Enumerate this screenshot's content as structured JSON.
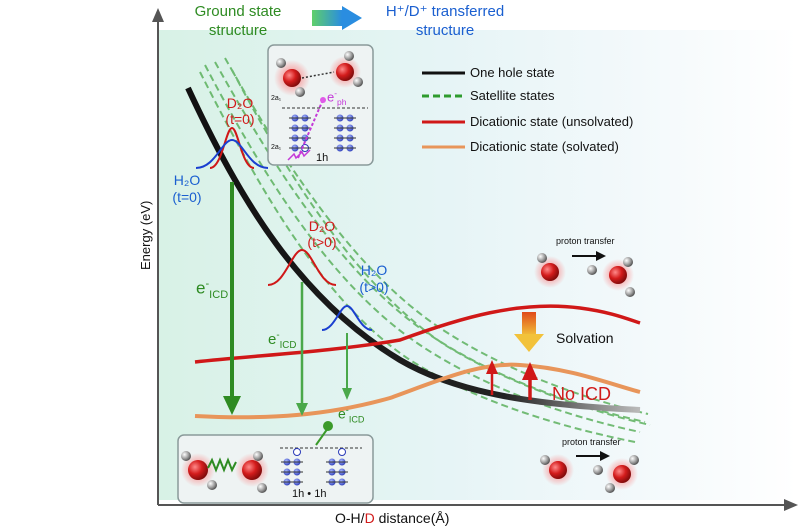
{
  "header": {
    "ground_label": "Ground state\nstructure",
    "transferred_label": "H⁺/D⁺ transferred\nstructure"
  },
  "axes": {
    "ylabel": "Energy (eV)",
    "xlabel_prefix": "O-H/",
    "xlabel_d": "D",
    "xlabel_suffix": " distance(Å)"
  },
  "legend": [
    {
      "label": "One hole state",
      "color": "#111111",
      "style": "solid"
    },
    {
      "label": "Satellite states",
      "color": "#2e9b2e",
      "style": "dashed"
    },
    {
      "label": "Dicationic state (unsolvated)",
      "color": "#d01818",
      "style": "solid"
    },
    {
      "label": "Dicationic state (solvated)",
      "color": "#e8955a",
      "style": "solid"
    }
  ],
  "wavepackets": {
    "d2o_t0": {
      "name": "D₂O",
      "time": "(t=0)"
    },
    "h2o_t0": {
      "name": "H₂O",
      "time": "(t=0)"
    },
    "d2o_t": {
      "name": "D₂O",
      "time": "(t>0)"
    },
    "h2o_t": {
      "name": "H₂O",
      "time": "(t>0)"
    }
  },
  "labels": {
    "eicd": "e",
    "icd_sub": "ICD",
    "solvation": "Solvation",
    "no_icd": "No ICD",
    "proton_transfer": "proton transfer",
    "eph": "e",
    "ph_sub": "ph",
    "inset_top_1h": "1h",
    "inset_top_2a1": "2a₁",
    "inset_bottom": "1h • 1h"
  },
  "colors": {
    "ground_green": "#2e8b22",
    "blue": "#1a5fd0",
    "red": "#d11a1a",
    "orange": "#e8955a",
    "icd_green": "#3a9a2a"
  }
}
